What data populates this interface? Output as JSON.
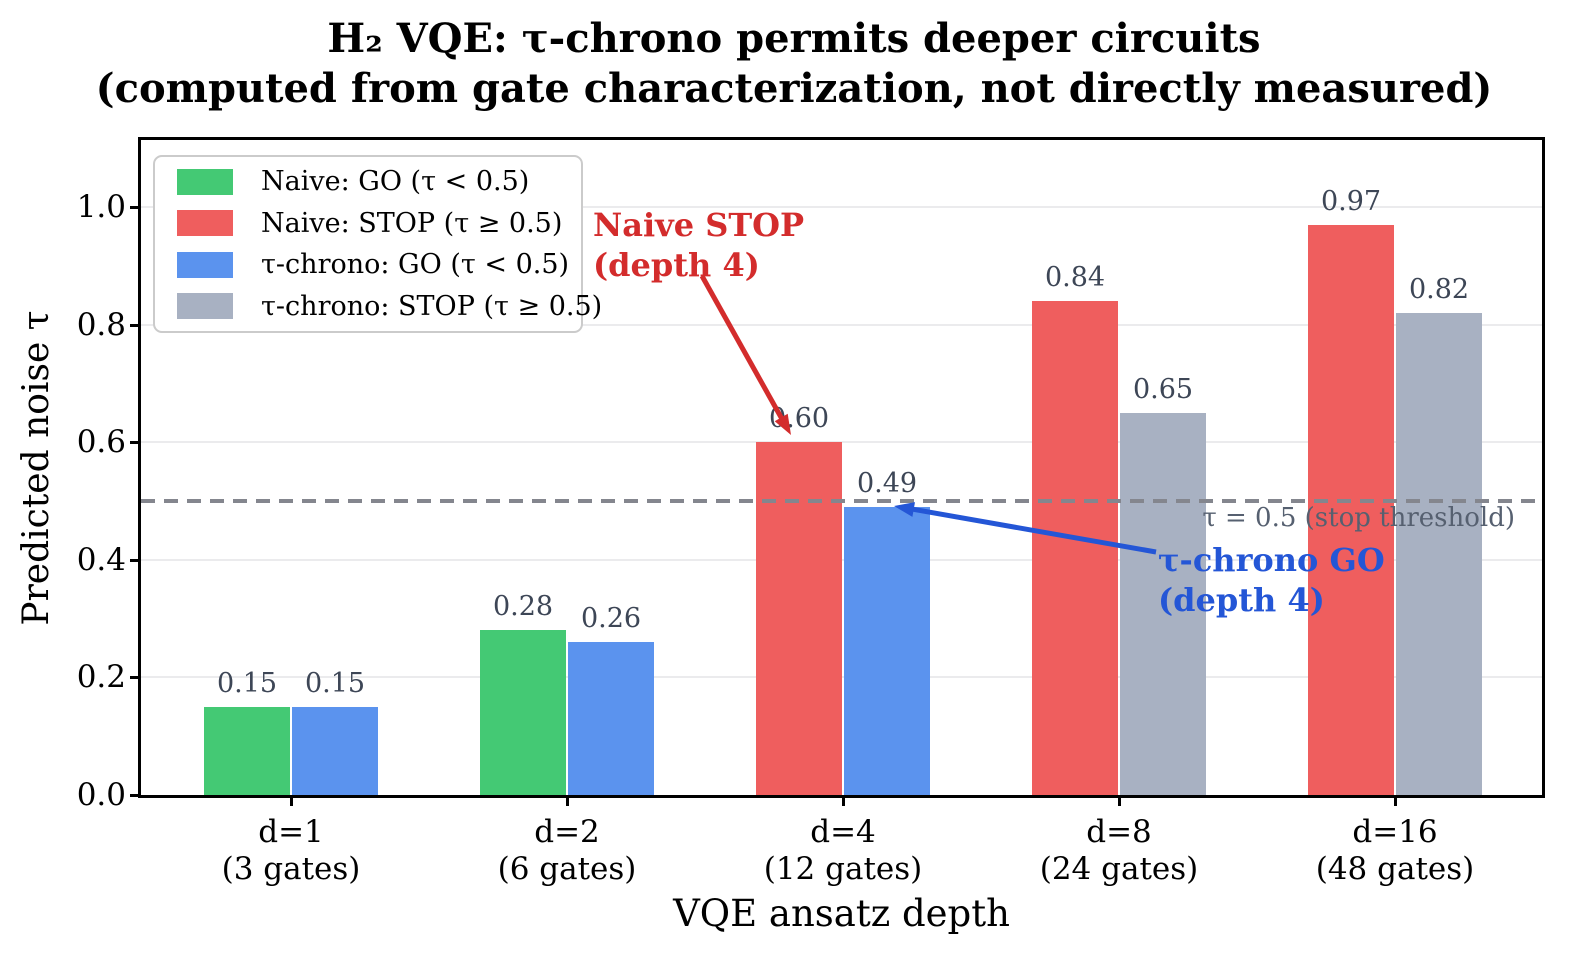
{
  "figure": {
    "title_line1": "H₂ VQE: τ-chrono permits deeper circuits",
    "title_line2": "(computed from gate characterization, not directly measured)"
  },
  "chart_data": {
    "type": "bar",
    "title": "H₂ VQE: τ-chrono permits deeper circuits (computed from gate characterization, not directly measured)",
    "xlabel": "VQE ansatz depth",
    "ylabel": "Predicted noise τ",
    "ylim": [
      0.0,
      1.114
    ],
    "yticks": [
      0.0,
      0.2,
      0.4,
      0.6,
      0.8,
      1.0
    ],
    "ytick_labels": [
      "0.0",
      "0.2",
      "0.4",
      "0.6",
      "0.8",
      "1.0"
    ],
    "grid": "horizontal-light",
    "legend_position": "upper-left",
    "categories": [
      "d=1\n(3 gates)",
      "d=2\n(6 gates)",
      "d=4\n(12 gates)",
      "d=8\n(24 gates)",
      "d=16\n(48 gates)"
    ],
    "series": [
      {
        "name": "Naive",
        "values": [
          0.15,
          0.28,
          0.6,
          0.84,
          0.97
        ],
        "value_labels": [
          "0.15",
          "0.28",
          "0.60",
          "0.84",
          "0.97"
        ],
        "bar_colors": [
          "#44c974",
          "#44c974",
          "#ef5e5e",
          "#ef5e5e",
          "#ef5e5e"
        ]
      },
      {
        "name": "τ-chrono",
        "values": [
          0.15,
          0.26,
          0.49,
          0.65,
          0.82
        ],
        "value_labels": [
          "0.15",
          "0.26",
          "0.49",
          "0.65",
          "0.82"
        ],
        "bar_colors": [
          "#5b93ee",
          "#5b93ee",
          "#5b93ee",
          "#a8b1c2",
          "#a8b1c2"
        ]
      }
    ],
    "threshold": {
      "value": 0.5,
      "label": "τ = 0.5 (stop threshold)",
      "line_color": "#84868e",
      "label_color": "#566070"
    }
  },
  "legend": {
    "items": [
      {
        "label": "Naive: GO (τ < 0.5)",
        "color": "#44c974"
      },
      {
        "label": "Naive: STOP (τ ≥ 0.5)",
        "color": "#ef5e5e"
      },
      {
        "label": "τ-chrono: GO (τ < 0.5)",
        "color": "#5b93ee"
      },
      {
        "label": "τ-chrono: STOP (τ ≥ 0.5)",
        "color": "#a8b1c2"
      }
    ]
  },
  "annotations": {
    "naive_stop": {
      "line1": "Naive STOP",
      "line2": "(depth 4)",
      "color": "#d32c2c"
    },
    "chrono_go": {
      "line1": "τ-chrono GO",
      "line2": "(depth 4)",
      "color": "#2456d6"
    }
  },
  "colors": {
    "value_label": "#3d4656",
    "gridline": "#ebebed",
    "axis": "#000000",
    "background": "#ffffff"
  }
}
